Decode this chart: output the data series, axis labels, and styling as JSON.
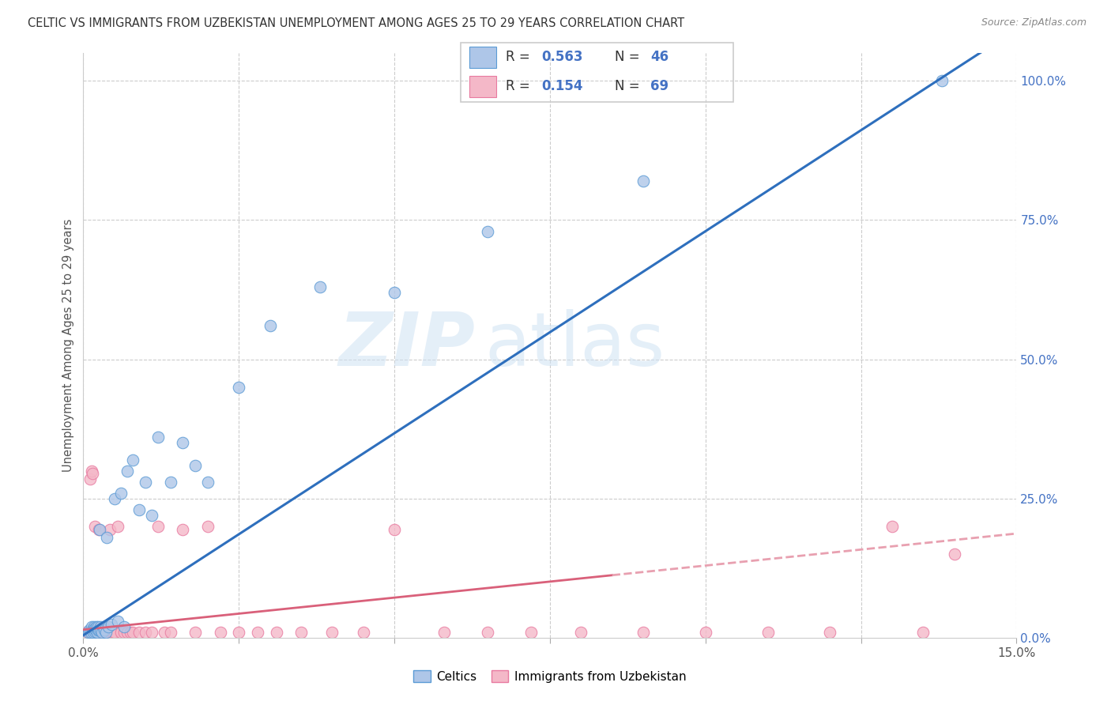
{
  "title": "CELTIC VS IMMIGRANTS FROM UZBEKISTAN UNEMPLOYMENT AMONG AGES 25 TO 29 YEARS CORRELATION CHART",
  "source": "Source: ZipAtlas.com",
  "ylabel": "Unemployment Among Ages 25 to 29 years",
  "xmin": 0.0,
  "xmax": 0.15,
  "ymin": 0.0,
  "ymax": 1.05,
  "right_yticks": [
    0.0,
    0.25,
    0.5,
    0.75,
    1.0
  ],
  "right_yticklabels": [
    "0.0%",
    "25.0%",
    "50.0%",
    "75.0%",
    "100.0%"
  ],
  "celtics_color": "#aec6e8",
  "uzbek_color": "#f4b8c8",
  "celtics_edge": "#5b9bd5",
  "uzbek_edge": "#e87aa0",
  "trend_celtics_color": "#2e6fbd",
  "trend_uzbek_color": "#d9607a",
  "trend_uzbek_dash_color": "#e8a0b0",
  "watermark_zip": "ZIP",
  "watermark_atlas": "atlas",
  "celtics_x": [
    0.0008,
    0.001,
    0.0012,
    0.0013,
    0.0015,
    0.0016,
    0.0017,
    0.0018,
    0.0019,
    0.002,
    0.0021,
    0.0022,
    0.0023,
    0.0024,
    0.0025,
    0.0026,
    0.0027,
    0.0028,
    0.003,
    0.0032,
    0.0034,
    0.0036,
    0.0038,
    0.004,
    0.0045,
    0.005,
    0.0055,
    0.006,
    0.0065,
    0.007,
    0.008,
    0.009,
    0.01,
    0.011,
    0.012,
    0.014,
    0.016,
    0.018,
    0.02,
    0.025,
    0.03,
    0.038,
    0.05,
    0.065,
    0.09,
    0.138
  ],
  "celtics_y": [
    0.01,
    0.015,
    0.01,
    0.02,
    0.015,
    0.01,
    0.02,
    0.012,
    0.018,
    0.015,
    0.02,
    0.01,
    0.015,
    0.02,
    0.015,
    0.195,
    0.02,
    0.015,
    0.01,
    0.02,
    0.015,
    0.01,
    0.18,
    0.02,
    0.025,
    0.25,
    0.03,
    0.26,
    0.02,
    0.3,
    0.32,
    0.23,
    0.28,
    0.22,
    0.36,
    0.28,
    0.35,
    0.31,
    0.28,
    0.45,
    0.56,
    0.63,
    0.62,
    0.73,
    0.82,
    1.0
  ],
  "uzbek_x": [
    0.0005,
    0.0007,
    0.0008,
    0.0009,
    0.001,
    0.0011,
    0.0012,
    0.0013,
    0.0014,
    0.0015,
    0.0016,
    0.0017,
    0.0018,
    0.0019,
    0.002,
    0.0021,
    0.0022,
    0.0023,
    0.0024,
    0.0025,
    0.0026,
    0.0027,
    0.0028,
    0.0029,
    0.003,
    0.0032,
    0.0034,
    0.0036,
    0.0038,
    0.004,
    0.0042,
    0.0044,
    0.0046,
    0.0048,
    0.005,
    0.0055,
    0.006,
    0.0065,
    0.007,
    0.0075,
    0.008,
    0.009,
    0.01,
    0.011,
    0.012,
    0.013,
    0.014,
    0.016,
    0.018,
    0.02,
    0.022,
    0.025,
    0.028,
    0.031,
    0.035,
    0.04,
    0.045,
    0.05,
    0.058,
    0.065,
    0.072,
    0.08,
    0.09,
    0.1,
    0.11,
    0.12,
    0.13,
    0.135,
    0.14
  ],
  "uzbek_y": [
    0.01,
    0.008,
    0.012,
    0.01,
    0.01,
    0.285,
    0.01,
    0.3,
    0.01,
    0.295,
    0.01,
    0.01,
    0.01,
    0.2,
    0.01,
    0.01,
    0.01,
    0.01,
    0.01,
    0.195,
    0.01,
    0.01,
    0.01,
    0.01,
    0.01,
    0.01,
    0.01,
    0.01,
    0.01,
    0.01,
    0.195,
    0.01,
    0.01,
    0.01,
    0.01,
    0.2,
    0.01,
    0.01,
    0.01,
    0.01,
    0.01,
    0.01,
    0.01,
    0.01,
    0.2,
    0.01,
    0.01,
    0.195,
    0.01,
    0.2,
    0.01,
    0.01,
    0.01,
    0.01,
    0.01,
    0.01,
    0.01,
    0.195,
    0.01,
    0.01,
    0.01,
    0.01,
    0.01,
    0.01,
    0.01,
    0.01,
    0.2,
    0.01,
    0.15
  ],
  "slope_c": 7.25,
  "intercept_c": 0.005,
  "slope_u": 1.15,
  "intercept_u": 0.015
}
